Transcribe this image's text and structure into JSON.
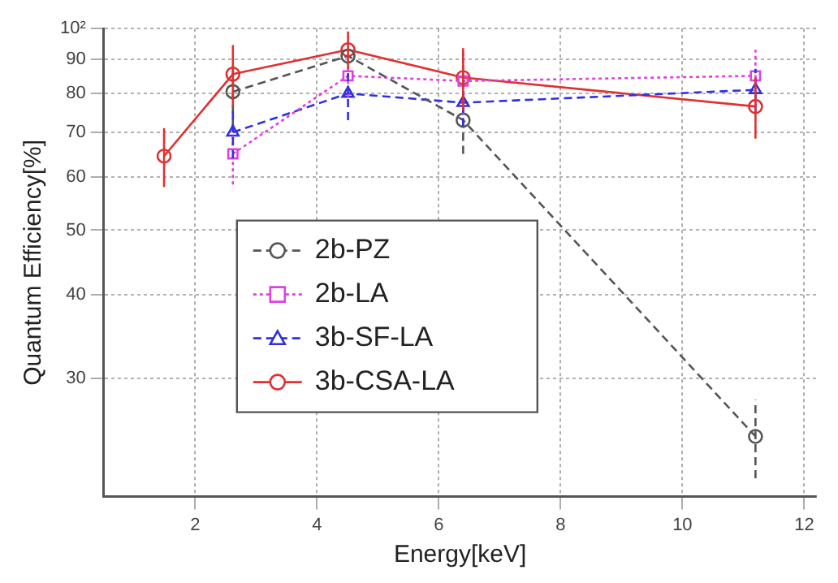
{
  "chart_data": {
    "type": "line",
    "xlabel": "Energy[keV]",
    "ylabel": "Quantum Efficiency[%]",
    "log": "y",
    "grid": true,
    "legend": "bottom left",
    "xlim": [
      0.5,
      12.2
    ],
    "xticks": [
      2,
      4,
      6,
      8,
      10,
      12
    ],
    "ylim": [
      20,
      100
    ],
    "yticks": [
      30,
      40,
      50,
      60,
      70,
      80,
      90,
      {
        "value": 100,
        "label": "10²"
      }
    ],
    "series": [
      {
        "name": "2b-PZ",
        "color": "#555555",
        "marker": "circle",
        "line_style": "dashed",
        "x": [
          2.62,
          4.51,
          6.4,
          11.2
        ],
        "values": [
          80.5,
          91,
          73,
          24.6
        ],
        "errors": [
          9,
          null,
          8,
          3.3
        ]
      },
      {
        "name": "2b-LA",
        "color": "#e040e0",
        "marker": "square",
        "line_style": "dotted",
        "x": [
          2.62,
          4.51,
          6.4,
          11.2
        ],
        "values": [
          65,
          85,
          83.5,
          85
        ],
        "errors": [
          6.5,
          6,
          9,
          8
        ]
      },
      {
        "name": "3b-SF-LA",
        "color": "#3030e0",
        "marker": "triangle",
        "line_style": "dashed",
        "x": [
          2.62,
          4.51,
          6.4,
          11.2
        ],
        "values": [
          70,
          80,
          77.5,
          81
        ],
        "errors": [
          6,
          7,
          6,
          6
        ]
      },
      {
        "name": "3b-CSA-LA",
        "color": "#e03030",
        "marker": "circle",
        "line_style": "solid",
        "x": [
          1.49,
          2.62,
          4.51,
          6.4,
          11.2
        ],
        "values": [
          64.5,
          85.5,
          93,
          84.5,
          76.5
        ],
        "errors": [
          6.5,
          9,
          6,
          9,
          8
        ]
      }
    ]
  }
}
